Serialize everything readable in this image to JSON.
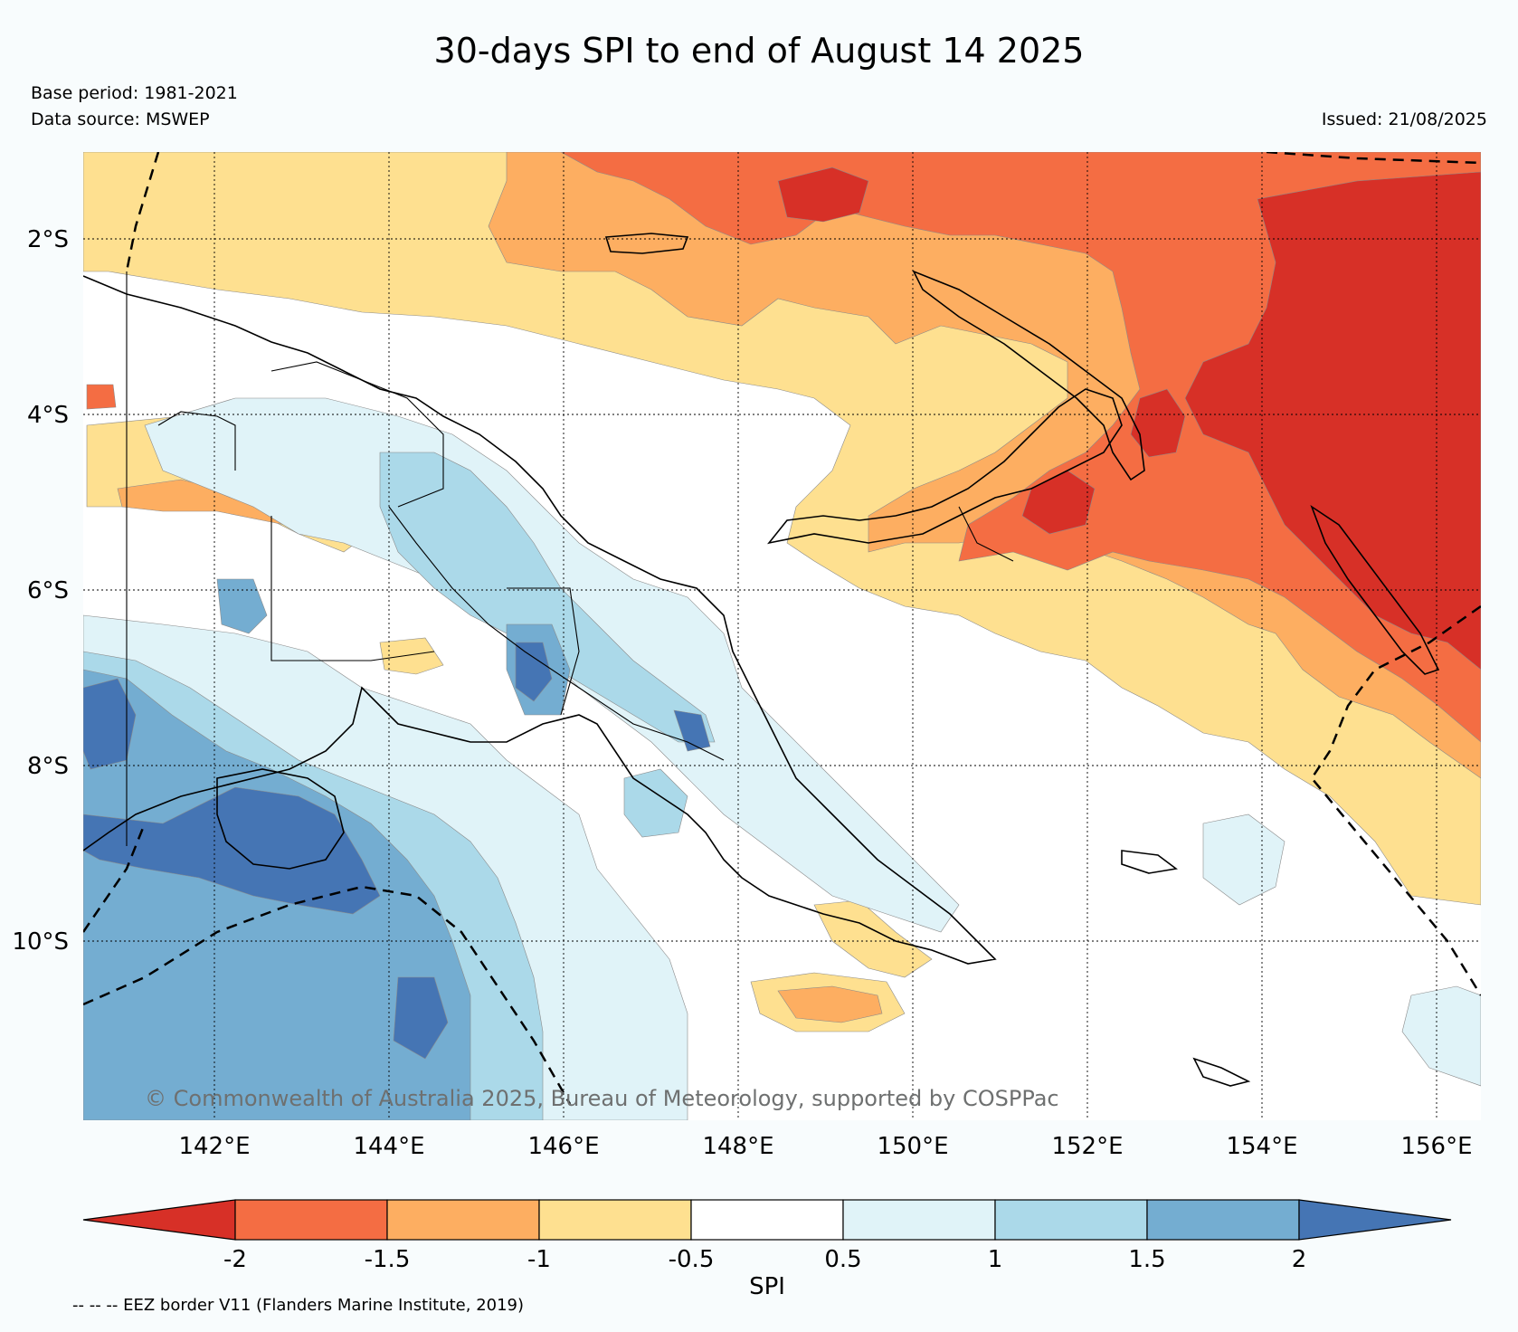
{
  "title": "30-days SPI to end of August 14 2025",
  "base_period": "Base period: 1981-2021",
  "data_source": "Data source: MSWEP",
  "issued": "Issued: 21/08/2025",
  "copyright": "© Commonwealth of Australia 2025, Bureau of Meteorology, supported by COSPPac",
  "eez_note": "-- -- -- EEZ border V11 (Flanders Marine Institute, 2019)",
  "lon_labels": [
    "142°E",
    "144°E",
    "146°E",
    "148°E",
    "150°E",
    "152°E",
    "154°E",
    "156°E"
  ],
  "lat_labels": [
    "2°S",
    "4°S",
    "6°S",
    "8°S",
    "10°S"
  ],
  "colorbar": {
    "label": "SPI",
    "ticks": [
      "-2",
      "-1.5",
      "-1",
      "-0.5",
      "0.5",
      "1",
      "1.5",
      "2"
    ],
    "colors": [
      "#d73027",
      "#f46d43",
      "#fdae61",
      "#fee090",
      "#ffffff",
      "#e0f3f8",
      "#abd9e9",
      "#74add1",
      "#4575b4"
    ]
  },
  "colors": {
    "extreme_dry": "#d73027",
    "severe_dry": "#f46d43",
    "moderate_dry": "#fdae61",
    "mild_dry": "#fee090",
    "near_normal": "#ffffff",
    "mild_wet": "#e0f3f8",
    "moderate_wet": "#abd9e9",
    "severe_wet": "#74add1",
    "extreme_wet": "#4575b4"
  }
}
